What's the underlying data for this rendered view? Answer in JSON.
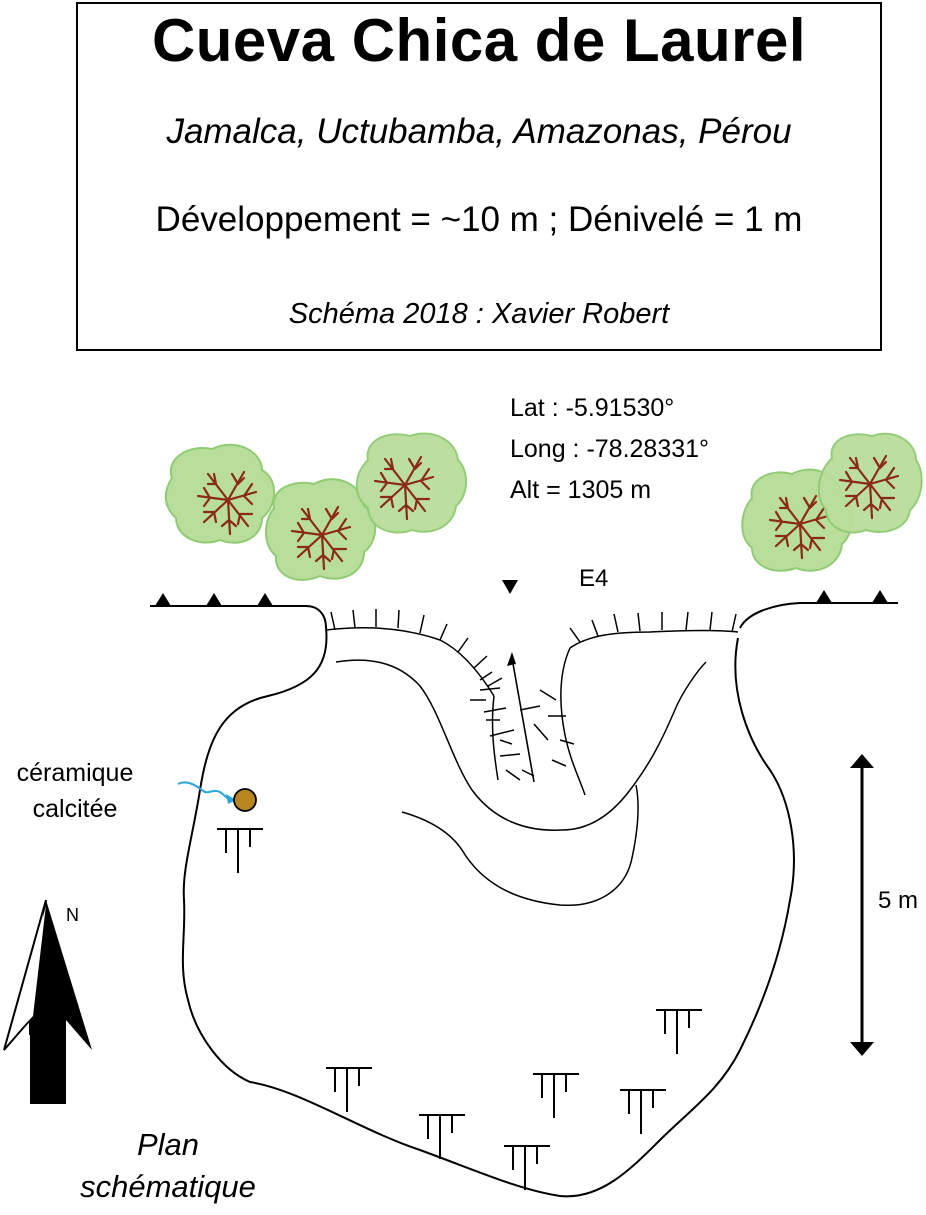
{
  "header": {
    "cave_name": "Cueva Chica de Laurel",
    "location": "Jamalca, Uctubamba, Amazonas, Pérou",
    "stats": "Développement = ~10 m ; Dénivelé = 1 m",
    "author": "Schéma 2018 : Xavier Robert"
  },
  "coordinates": {
    "lat": "Lat : -5.91530°",
    "long": "Long : -78.28331°",
    "alt": "Alt = 1305 m"
  },
  "entrance_label": "E4",
  "feature_note": {
    "line1": "céramique",
    "line2": "calcitée"
  },
  "scale_bar": {
    "label": "5 m"
  },
  "north_label": "N",
  "plan_label": {
    "line1": "Plan",
    "line2": "schématique"
  },
  "colors": {
    "tree_fill": "#b9dd9a",
    "tree_edge": "#8fcb73",
    "branch": "#8b2a16",
    "ceramic": "#b7861f",
    "pointer": "#2aa6d8"
  }
}
